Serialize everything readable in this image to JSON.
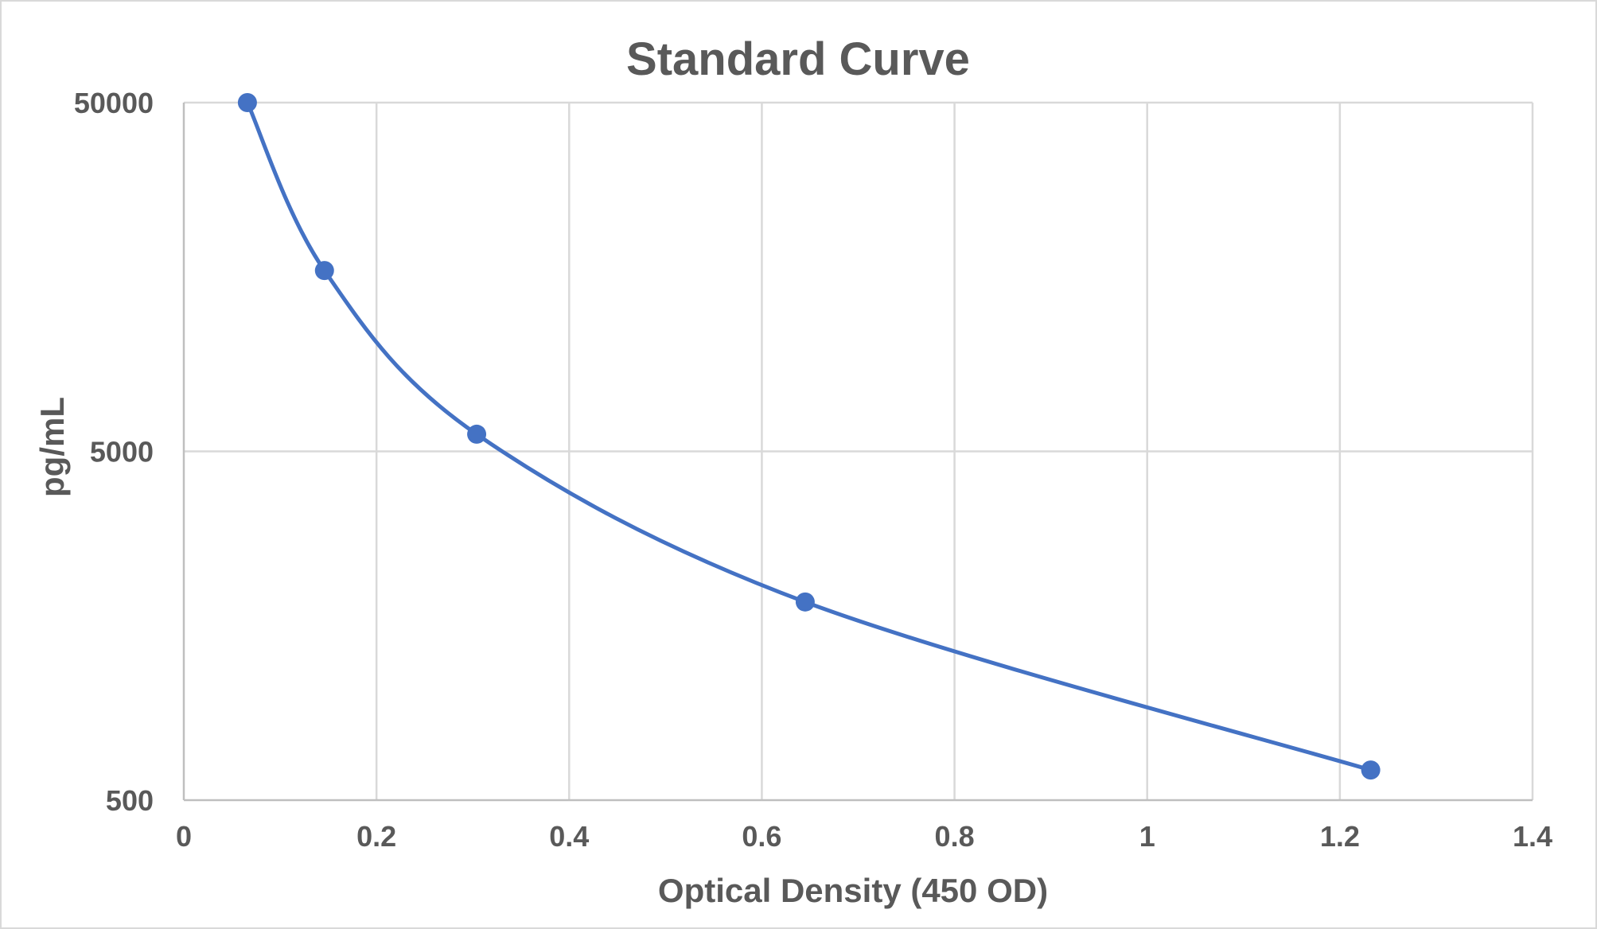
{
  "colors": {
    "series": "#4472c4",
    "text": "#595959",
    "grid": "#d9d9d9"
  },
  "chart_data": {
    "type": "scatter",
    "title": "Standard Curve",
    "xlabel": "Optical Density (450 OD)",
    "ylabel": "pg/mL",
    "xlim": [
      0,
      1.4
    ],
    "ylim": [
      500,
      50000
    ],
    "y_scale": "log",
    "grid": true,
    "smooth_line": true,
    "x_ticks": [
      "0",
      "0.2",
      "0.4",
      "0.6",
      "0.8",
      "1",
      "1.2",
      "1.4"
    ],
    "y_ticks": [
      "50000",
      "5000",
      "500"
    ],
    "series": [
      {
        "x": [
          0.066,
          0.146,
          0.304,
          0.645,
          1.232
        ],
        "y": [
          50000,
          16500,
          5600,
          1850,
          610
        ]
      }
    ]
  }
}
